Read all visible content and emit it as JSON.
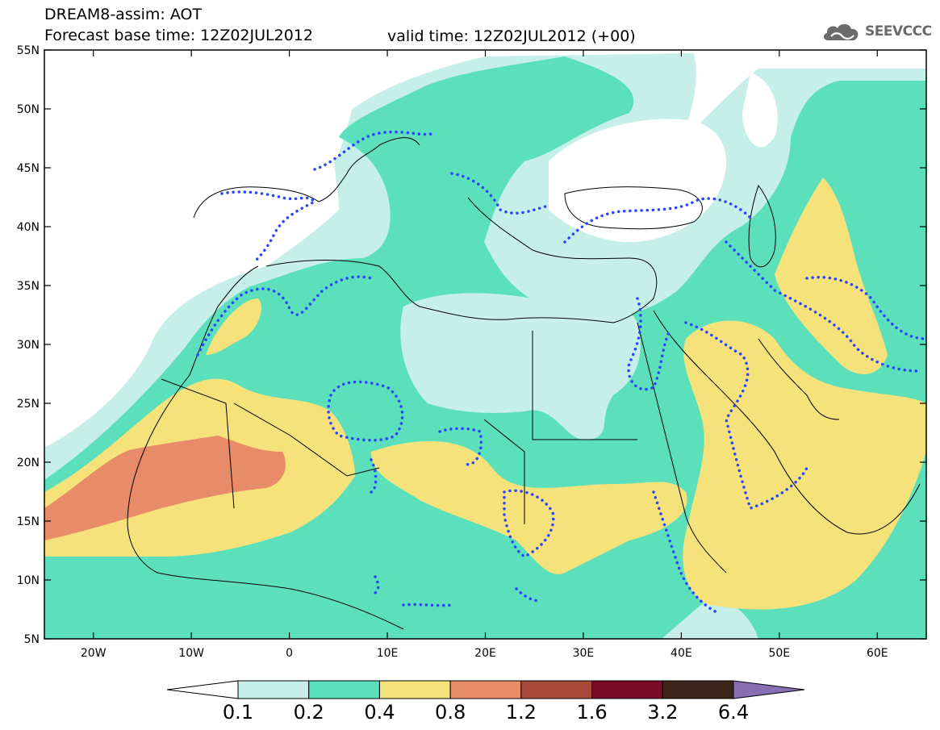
{
  "header": {
    "title_line1": "DREAM8-assim: AOT",
    "title_line2": "Forecast base time: 12Z02JUL2012",
    "valid_time": "valid time: 12Z02JUL2012 (+00)"
  },
  "logo": {
    "text": "SEEVCCC",
    "icon": "cloud-icon"
  },
  "map": {
    "lon_range": [
      -25,
      65
    ],
    "lat_range": [
      5,
      55
    ],
    "x_ticks": [
      "20W",
      "10W",
      "0",
      "10E",
      "20E",
      "30E",
      "40E",
      "50E",
      "60E"
    ],
    "y_ticks": [
      "55N",
      "50N",
      "45N",
      "40N",
      "35N",
      "30N",
      "25N",
      "20N",
      "15N",
      "10N",
      "5N"
    ]
  },
  "colorbar": {
    "labels": [
      "0.1",
      "0.2",
      "0.4",
      "0.8",
      "1.2",
      "1.6",
      "3.2",
      "6.4"
    ],
    "colors": [
      "#ffffff",
      "#c5efe8",
      "#5ce0bc",
      "#f5e27a",
      "#e88b68",
      "#a84a3a",
      "#7a0a2a",
      "#3d2418",
      "#8a6fb0"
    ]
  },
  "colors": {
    "aot_0_1": "#c5efe8",
    "aot_0_2": "#5ce0bc",
    "aot_0_4": "#f5e27a",
    "aot_0_8": "#e88b68",
    "dust_contour": "#2a44ff"
  }
}
